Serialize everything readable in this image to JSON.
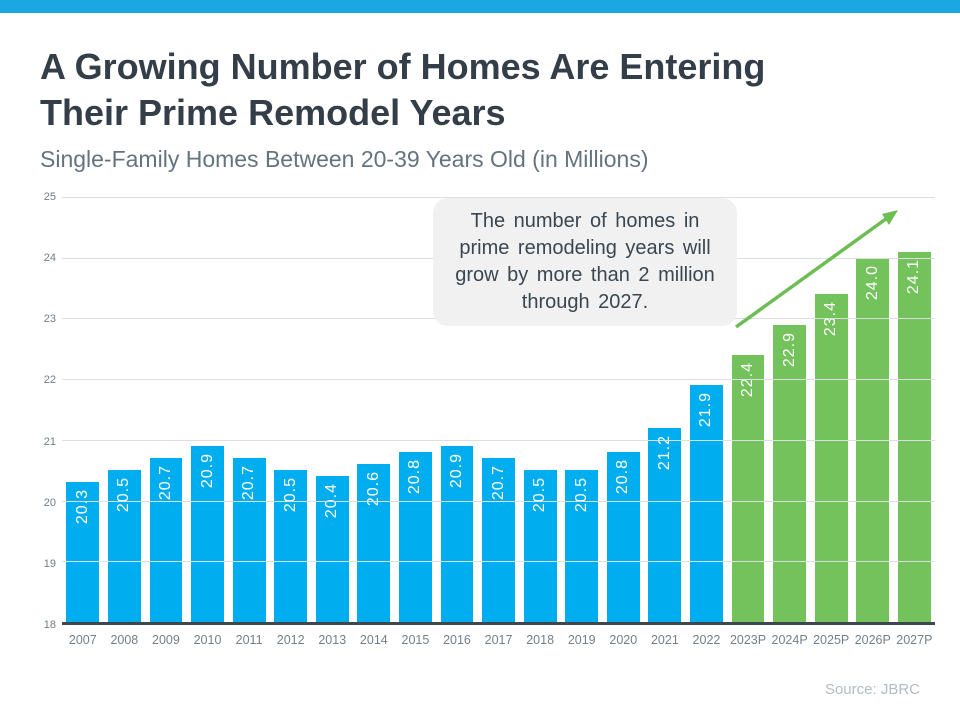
{
  "header": {
    "title_line1": "A Growing Number of Homes Are Entering",
    "title_line2": "Their Prime Remodel Years",
    "subtitle": "Single-Family Homes Between 20-39 Years Old (in Millions)"
  },
  "chart_data": {
    "type": "bar",
    "title": "A Growing Number of Homes Are Entering Their Prime Remodel Years",
    "subtitle": "Single-Family Homes Between 20-39 Years Old (in Millions)",
    "categories": [
      "2007",
      "2008",
      "2009",
      "2010",
      "2011",
      "2012",
      "2013",
      "2014",
      "2015",
      "2016",
      "2017",
      "2018",
      "2019",
      "2020",
      "2021",
      "2022",
      "2023P",
      "2024P",
      "2025P",
      "2026P",
      "2027P"
    ],
    "values": [
      20.3,
      20.5,
      20.7,
      20.9,
      20.7,
      20.5,
      20.4,
      20.6,
      20.8,
      20.9,
      20.7,
      20.5,
      20.5,
      20.8,
      21.2,
      21.9,
      22.4,
      22.9,
      23.4,
      24.0,
      24.1
    ],
    "projected_start_index": 16,
    "ylim": [
      18,
      25
    ],
    "yticks": [
      18,
      19,
      20,
      21,
      22,
      23,
      24,
      25
    ],
    "grid": true,
    "legend_position": "none",
    "bar_color_historical": "#00AEEF",
    "bar_color_projected": "#73C25C",
    "annotation_lines": [
      "The number of homes in",
      "prime remodeling  years will",
      "grow by more than 2 million",
      "through  2027."
    ],
    "annotation_text": "The number of homes in prime remodeling years will grow by more than 2 million through 2027."
  },
  "footer": {
    "source": "Source: JBRC"
  },
  "colors": {
    "banner": "#1BA7E2",
    "arrow": "#6CBE53",
    "title": "#333E48",
    "subtitle": "#64747E"
  }
}
